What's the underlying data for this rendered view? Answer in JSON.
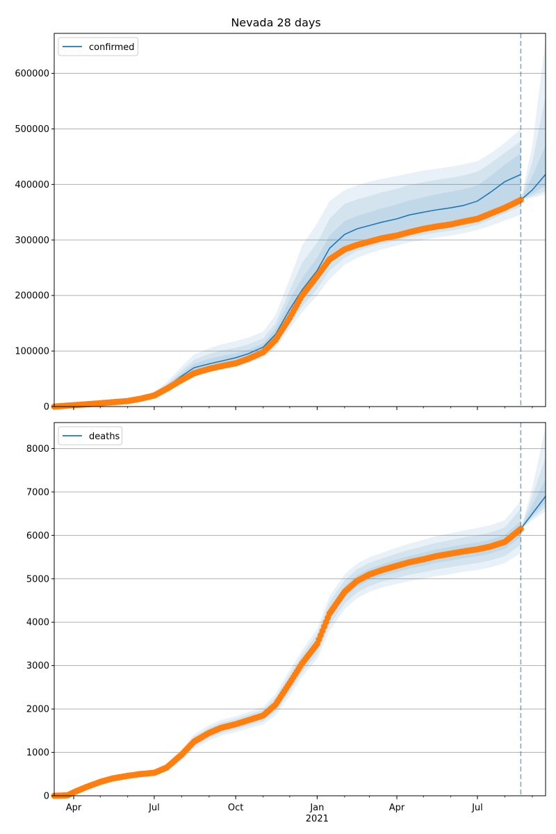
{
  "figure": {
    "title": "Nevada 28 days"
  },
  "chart_data": [
    {
      "type": "line",
      "panel": "top",
      "legend": {
        "entries": [
          "confirmed"
        ],
        "placement": "top-left"
      },
      "ylim": [
        0,
        672000
      ],
      "yticks": [
        0,
        100000,
        200000,
        300000,
        400000,
        500000,
        600000
      ],
      "ytick_labels": [
        "0",
        "100000",
        "200000",
        "300000",
        "400000",
        "500000",
        "600000"
      ],
      "grid": "y",
      "forecast_start": "2021-08-19",
      "series": [
        {
          "name": "confirmed",
          "role": "model fit",
          "color": "#1f77b4",
          "x": [
            "2020-03-10",
            "2020-05-01",
            "2020-06-15",
            "2020-07-01",
            "2020-07-15",
            "2020-08-01",
            "2020-08-15",
            "2020-09-01",
            "2020-09-15",
            "2020-10-01",
            "2020-10-15",
            "2020-11-01",
            "2020-11-15",
            "2020-12-01",
            "2020-12-15",
            "2021-01-01",
            "2021-01-15",
            "2021-02-01",
            "2021-02-15",
            "2021-03-01",
            "2021-03-15",
            "2021-04-01",
            "2021-04-15",
            "2021-05-01",
            "2021-05-15",
            "2021-06-01",
            "2021-06-15",
            "2021-07-01",
            "2021-07-15",
            "2021-08-01",
            "2021-08-19"
          ],
          "y": [
            0,
            4000,
            13000,
            22000,
            35000,
            55000,
            70000,
            77000,
            82000,
            88000,
            95000,
            107000,
            130000,
            175000,
            210000,
            245000,
            285000,
            310000,
            320000,
            326000,
            332000,
            338000,
            345000,
            350000,
            354000,
            358000,
            362000,
            370000,
            385000,
            405000,
            418000
          ]
        },
        {
          "name": "forecast",
          "role": "forecast median",
          "color": "#1f77b4",
          "x": [
            "2021-08-19",
            "2021-09-01",
            "2021-09-16"
          ],
          "y": [
            372000,
            390000,
            418000
          ]
        },
        {
          "name": "observed",
          "role": "observed data points",
          "color": "#ff7f0e",
          "x": [
            "2020-03-10",
            "2020-04-01",
            "2020-05-01",
            "2020-06-01",
            "2020-06-15",
            "2020-07-01",
            "2020-07-15",
            "2020-08-01",
            "2020-08-15",
            "2020-09-01",
            "2020-09-15",
            "2020-10-01",
            "2020-10-15",
            "2020-11-01",
            "2020-11-15",
            "2020-12-01",
            "2020-12-15",
            "2021-01-01",
            "2021-01-15",
            "2021-02-01",
            "2021-02-15",
            "2021-03-01",
            "2021-03-15",
            "2021-04-01",
            "2021-04-15",
            "2021-05-01",
            "2021-05-15",
            "2021-06-01",
            "2021-06-15",
            "2021-07-01",
            "2021-07-15",
            "2021-08-01",
            "2021-08-19"
          ],
          "y": [
            0,
            2500,
            6000,
            10000,
            14000,
            20000,
            32000,
            48000,
            60000,
            68000,
            73000,
            78000,
            86000,
            98000,
            120000,
            160000,
            200000,
            235000,
            265000,
            283000,
            291000,
            297000,
            303000,
            308000,
            314000,
            320000,
            324000,
            328000,
            333000,
            338000,
            347000,
            358000,
            372000
          ]
        }
      ],
      "bands": [
        {
          "label": "outer",
          "opacity": 0.1,
          "lower": [
            0,
            3000,
            11000,
            18000,
            27000,
            42000,
            55000,
            62000,
            67000,
            72000,
            78000,
            88000,
            105000,
            140000,
            170000,
            200000,
            230000,
            255000,
            268000,
            276000,
            283000,
            290000,
            296000,
            300000,
            304000,
            308000,
            312000,
            318000,
            325000,
            335000,
            345000
          ],
          "upper": [
            0,
            5000,
            16000,
            27000,
            44000,
            72000,
            94000,
            105000,
            112000,
            118000,
            124000,
            135000,
            165000,
            230000,
            290000,
            330000,
            370000,
            390000,
            398000,
            405000,
            410000,
            415000,
            420000,
            425000,
            428000,
            432000,
            436000,
            442000,
            455000,
            475000,
            500000
          ]
        },
        {
          "label": "middle",
          "opacity": 0.1,
          "lower": [
            0,
            3300,
            11700,
            19300,
            29700,
            46300,
            59300,
            66300,
            71300,
            76500,
            82700,
            93000,
            111000,
            148000,
            180000,
            212000,
            245000,
            268000,
            280000,
            287000,
            293000,
            299000,
            305000,
            309000,
            313000,
            317000,
            321000,
            327000,
            336000,
            348000,
            360000
          ],
          "upper": [
            0,
            4700,
            14800,
            25000,
            40000,
            65000,
            84000,
            95000,
            101000,
            106000,
            112000,
            123000,
            150000,
            209000,
            259000,
            295000,
            338000,
            365000,
            373000,
            379000,
            386000,
            392000,
            399000,
            404000,
            408000,
            412000,
            416000,
            423000,
            437000,
            457000,
            478000
          ]
        },
        {
          "label": "inner",
          "opacity": 0.1,
          "lower": [
            0,
            3600,
            12300,
            20500,
            32000,
            50000,
            64000,
            71000,
            76000,
            81700,
            88000,
            99000,
            118000,
            158000,
            191000,
            225000,
            260000,
            281000,
            292000,
            298000,
            304000,
            310000,
            316000,
            320000,
            324000,
            328000,
            332000,
            338000,
            348000,
            362000,
            375000
          ],
          "upper": [
            0,
            4400,
            13800,
            23500,
            38000,
            60000,
            77000,
            86000,
            91000,
            96000,
            102000,
            114000,
            140000,
            193000,
            231000,
            268000,
            308000,
            334000,
            343000,
            350000,
            357000,
            364000,
            371000,
            377000,
            382000,
            387000,
            391000,
            398000,
            414000,
            436000,
            456000
          ]
        }
      ],
      "forecast_bands": [
        {
          "label": "outer",
          "opacity": 0.1,
          "x": [
            "2021-08-19",
            "2021-09-01",
            "2021-09-16"
          ],
          "lower": [
            372000,
            376000,
            382000
          ],
          "upper": [
            372000,
            470000,
            660000
          ]
        },
        {
          "label": "middle",
          "opacity": 0.1,
          "x": [
            "2021-08-19",
            "2021-09-01",
            "2021-09-16"
          ],
          "lower": [
            372000,
            379000,
            388000
          ],
          "upper": [
            372000,
            440000,
            560000
          ]
        },
        {
          "label": "inner",
          "opacity": 0.1,
          "x": [
            "2021-08-19",
            "2021-09-01",
            "2021-09-16"
          ],
          "lower": [
            372000,
            383000,
            398000
          ],
          "upper": [
            372000,
            415000,
            470000
          ]
        }
      ]
    },
    {
      "type": "line",
      "panel": "bottom",
      "legend": {
        "entries": [
          "deaths"
        ],
        "placement": "top-left"
      },
      "ylim": [
        0,
        8600
      ],
      "yticks": [
        0,
        1000,
        2000,
        3000,
        4000,
        5000,
        6000,
        7000,
        8000
      ],
      "ytick_labels": [
        "0",
        "1000",
        "2000",
        "3000",
        "4000",
        "5000",
        "6000",
        "7000",
        "8000"
      ],
      "grid": "y",
      "forecast_start": "2021-08-19",
      "xlim": [
        "2020-03-10",
        "2021-09-16"
      ],
      "xticks": [
        "2020-04-01",
        "2020-07-01",
        "2020-10-01",
        "2021-01-01",
        "2021-04-01",
        "2021-07-01"
      ],
      "xtick_labels": [
        "Apr",
        "Jul",
        "Oct",
        "Jan\n2021",
        "Apr",
        "Jul"
      ],
      "series": [
        {
          "name": "deaths",
          "role": "model fit",
          "color": "#1f77b4",
          "x": [
            "2020-03-10",
            "2020-04-01",
            "2020-05-01",
            "2020-06-01",
            "2020-07-01",
            "2020-07-15",
            "2020-08-01",
            "2020-08-15",
            "2020-09-01",
            "2020-09-15",
            "2020-10-01",
            "2020-10-15",
            "2020-11-01",
            "2020-11-15",
            "2020-12-01",
            "2020-12-15",
            "2021-01-01",
            "2021-01-15",
            "2021-02-01",
            "2021-02-15",
            "2021-03-01",
            "2021-03-15",
            "2021-04-01",
            "2021-04-15",
            "2021-05-01",
            "2021-05-15",
            "2021-06-01",
            "2021-06-15",
            "2021-07-01",
            "2021-07-15",
            "2021-08-01",
            "2021-08-19"
          ],
          "y": [
            0,
            80,
            350,
            460,
            530,
            650,
            950,
            1250,
            1450,
            1570,
            1650,
            1740,
            1850,
            2100,
            2600,
            3050,
            3500,
            4200,
            4700,
            4950,
            5100,
            5200,
            5300,
            5380,
            5450,
            5520,
            5580,
            5630,
            5680,
            5740,
            5850,
            6150
          ]
        },
        {
          "name": "forecast",
          "role": "forecast median",
          "color": "#1f77b4",
          "x": [
            "2021-08-19",
            "2021-09-01",
            "2021-09-16"
          ],
          "y": [
            6150,
            6500,
            6900
          ]
        },
        {
          "name": "observed",
          "role": "observed data points",
          "color": "#ff7f0e",
          "x": [
            "2020-03-10",
            "2020-03-25",
            "2020-04-01",
            "2020-04-15",
            "2020-05-01",
            "2020-05-15",
            "2020-06-01",
            "2020-06-15",
            "2020-07-01",
            "2020-07-15",
            "2020-08-01",
            "2020-08-15",
            "2020-09-01",
            "2020-09-15",
            "2020-10-01",
            "2020-10-15",
            "2020-11-01",
            "2020-11-15",
            "2020-12-01",
            "2020-12-15",
            "2021-01-01",
            "2021-01-15",
            "2021-02-01",
            "2021-02-15",
            "2021-03-01",
            "2021-03-15",
            "2021-04-01",
            "2021-04-15",
            "2021-05-01",
            "2021-05-15",
            "2021-06-01",
            "2021-06-15",
            "2021-07-01",
            "2021-07-15",
            "2021-08-01",
            "2021-08-19"
          ],
          "y": [
            0,
            10,
            80,
            200,
            320,
            400,
            460,
            500,
            530,
            650,
            950,
            1250,
            1450,
            1570,
            1650,
            1740,
            1850,
            2100,
            2600,
            3050,
            3500,
            4200,
            4700,
            4950,
            5100,
            5200,
            5300,
            5380,
            5450,
            5520,
            5580,
            5630,
            5680,
            5740,
            5850,
            6150
          ]
        }
      ],
      "bands": [
        {
          "label": "outer",
          "opacity": 0.1,
          "lower": [
            0,
            60,
            300,
            400,
            460,
            560,
            820,
            1080,
            1270,
            1390,
            1470,
            1550,
            1650,
            1850,
            2300,
            2750,
            3150,
            3800,
            4300,
            4550,
            4700,
            4800,
            4880,
            4950,
            5000,
            5060,
            5110,
            5160,
            5200,
            5260,
            5360,
            5600
          ],
          "upper": [
            0,
            100,
            400,
            520,
            600,
            740,
            1080,
            1420,
            1630,
            1750,
            1830,
            1930,
            2050,
            2350,
            2900,
            3350,
            3850,
            4600,
            5100,
            5350,
            5500,
            5600,
            5720,
            5810,
            5900,
            5980,
            6050,
            6110,
            6170,
            6230,
            6350,
            6800
          ]
        },
        {
          "label": "middle",
          "opacity": 0.1,
          "lower": [
            0,
            67,
            317,
            420,
            483,
            590,
            863,
            1137,
            1330,
            1450,
            1530,
            1613,
            1717,
            1933,
            2400,
            2850,
            3267,
            3933,
            4433,
            4683,
            4833,
            4933,
            5017,
            5093,
            5150,
            5213,
            5267,
            5317,
            5360,
            5420,
            5523,
            5783
          ],
          "upper": [
            0,
            93,
            383,
            500,
            577,
            710,
            1037,
            1363,
            1570,
            1690,
            1770,
            1867,
            1983,
            2267,
            2800,
            3250,
            3733,
            4467,
            4967,
            5217,
            5367,
            5467,
            5583,
            5667,
            5750,
            5827,
            5893,
            5953,
            6003,
            6063,
            6183,
            6617
          ]
        },
        {
          "label": "inner",
          "opacity": 0.1,
          "lower": [
            0,
            73,
            333,
            440,
            507,
            620,
            907,
            1193,
            1390,
            1510,
            1590,
            1677,
            1783,
            2017,
            2500,
            2950,
            3383,
            4067,
            4567,
            4817,
            4967,
            5067,
            5153,
            5237,
            5300,
            5367,
            5423,
            5473,
            5520,
            5580,
            5687,
            5967
          ],
          "upper": [
            0,
            87,
            367,
            480,
            553,
            680,
            993,
            1307,
            1510,
            1630,
            1710,
            1803,
            1917,
            2183,
            2700,
            3150,
            3617,
            4333,
            4833,
            5083,
            5233,
            5333,
            5447,
            5523,
            5600,
            5673,
            5737,
            5787,
            5840,
            5900,
            6013,
            6333
          ]
        }
      ],
      "forecast_bands": [
        {
          "label": "outer",
          "opacity": 0.1,
          "x": [
            "2021-08-19",
            "2021-09-01",
            "2021-09-16"
          ],
          "lower": [
            6150,
            6350,
            6550
          ],
          "upper": [
            6150,
            7100,
            8500
          ]
        },
        {
          "label": "middle",
          "opacity": 0.1,
          "x": [
            "2021-08-19",
            "2021-09-01",
            "2021-09-16"
          ],
          "lower": [
            6150,
            6400,
            6650
          ],
          "upper": [
            6150,
            6900,
            7800
          ]
        },
        {
          "label": "inner",
          "opacity": 0.1,
          "x": [
            "2021-08-19",
            "2021-09-01",
            "2021-09-16"
          ],
          "lower": [
            6150,
            6450,
            6750
          ],
          "upper": [
            6150,
            6700,
            7300
          ]
        }
      ]
    }
  ]
}
